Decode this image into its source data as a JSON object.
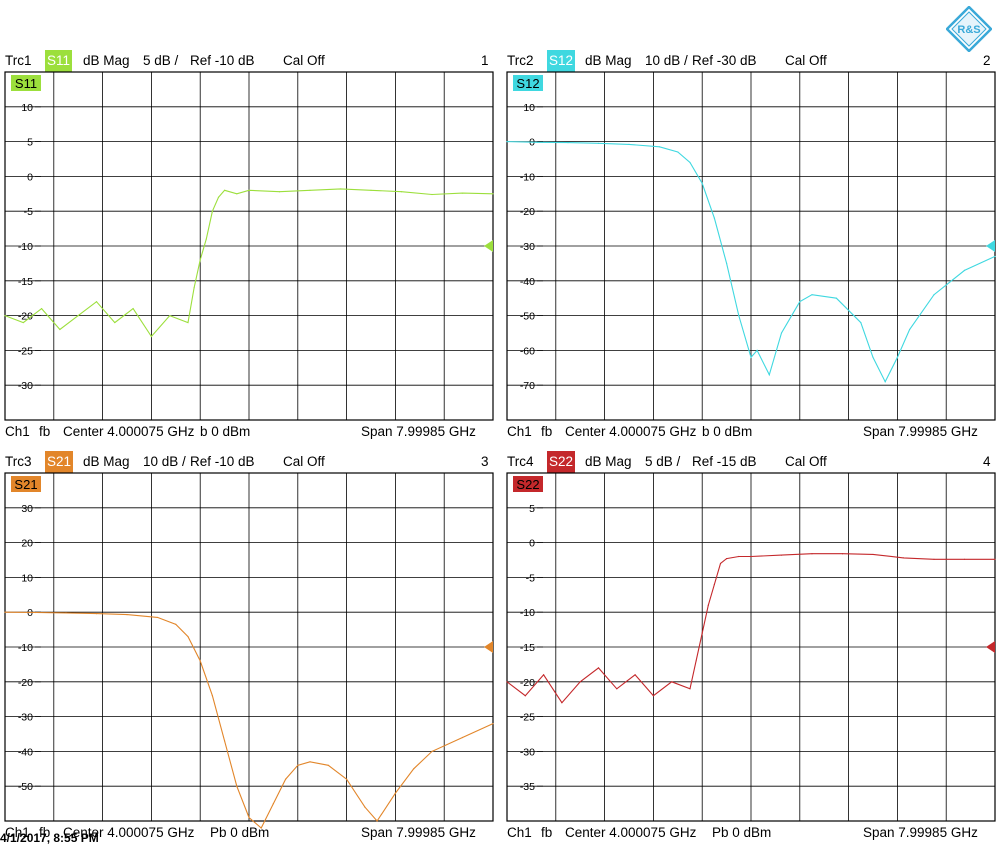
{
  "timestamp": "4/1/2017, 8:55 PM",
  "colors": {
    "s11": "#9cdf3c",
    "s12": "#3fd8e0",
    "s21": "#e2862a",
    "s22": "#c4282b"
  },
  "logo": {
    "text": "R&S",
    "color": "#3aa9d8"
  },
  "chart_data": [
    {
      "type": "line",
      "id": "trc1",
      "header": {
        "trace": "Trc1",
        "param": "S11",
        "format": "dB Mag",
        "scale": "5 dB /",
        "ref": "Ref -10 dB",
        "cal": "Cal Off",
        "number": "1"
      },
      "trace_label": "S11",
      "color": "#9cdf3c",
      "footer": {
        "channel": "Ch1",
        "mode": "fb",
        "center": "Center  4.000075 GHz",
        "power": "b   0 dBm",
        "span": "Span  7.99985 GHz"
      },
      "ylim": [
        -35,
        15
      ],
      "yticks": [
        10,
        5,
        0,
        -5,
        -10,
        -15,
        -20,
        -25,
        -30
      ],
      "ref_value": -10,
      "x": [
        0,
        0.3,
        0.6,
        0.9,
        1.2,
        1.5,
        1.8,
        2.1,
        2.4,
        2.7,
        3.0,
        3.1,
        3.2,
        3.3,
        3.4,
        3.5,
        3.6,
        3.8,
        4.0,
        4.5,
        5.0,
        5.5,
        6.0,
        6.5,
        7.0,
        7.5,
        8.0
      ],
      "y": [
        -20,
        -21,
        -19,
        -22,
        -20,
        -18,
        -21,
        -19,
        -23,
        -20,
        -21,
        -16,
        -12,
        -9,
        -5,
        -3,
        -2,
        -2.5,
        -2,
        -2.2,
        -2,
        -1.8,
        -2,
        -2.2,
        -2.6,
        -2.4,
        -2.5
      ]
    },
    {
      "type": "line",
      "id": "trc2",
      "header": {
        "trace": "Trc2",
        "param": "S12",
        "format": "dB Mag",
        "scale": "10 dB /",
        "ref": "Ref -30 dB",
        "cal": "Cal Off",
        "number": "2"
      },
      "trace_label": "S12",
      "color": "#3fd8e0",
      "footer": {
        "channel": "Ch1",
        "mode": "fb",
        "center": "Center  4.000075 GHz",
        "power": "b   0 dBm",
        "span": "Span  7.99985 GHz"
      },
      "ylim": [
        -80,
        20
      ],
      "yticks": [
        10,
        0,
        -10,
        -20,
        -30,
        -40,
        -50,
        -60,
        -70
      ],
      "ref_value": -30,
      "x": [
        0,
        0.5,
        1.0,
        1.5,
        2.0,
        2.5,
        2.8,
        3.0,
        3.2,
        3.4,
        3.6,
        3.8,
        4.0,
        4.1,
        4.3,
        4.5,
        4.8,
        5.0,
        5.4,
        5.8,
        6.0,
        6.2,
        6.4,
        6.6,
        7.0,
        7.5,
        8.0
      ],
      "y": [
        0,
        -0.2,
        -0.3,
        -0.5,
        -0.8,
        -1.5,
        -3,
        -6,
        -12,
        -22,
        -35,
        -50,
        -62,
        -60,
        -67,
        -55,
        -46,
        -44,
        -45,
        -52,
        -62,
        -69,
        -62,
        -54,
        -44,
        -37,
        -33
      ]
    },
    {
      "type": "line",
      "id": "trc3",
      "header": {
        "trace": "Trc3",
        "param": "S21",
        "format": "dB Mag",
        "scale": "10 dB /",
        "ref": "Ref -10 dB",
        "cal": "Cal Off",
        "number": "3"
      },
      "trace_label": "S21",
      "color": "#e2862a",
      "footer": {
        "channel": "Ch1",
        "mode": "fb",
        "center": "Center  4.000075 GHz",
        "power": "Pb   0 dBm",
        "span": "Span  7.99985 GHz"
      },
      "ylim": [
        -60,
        40
      ],
      "yticks": [
        30,
        20,
        10,
        0,
        -10,
        -20,
        -30,
        -40,
        -50
      ],
      "ref_value": -10,
      "x": [
        0,
        0.5,
        1.0,
        1.5,
        2.0,
        2.5,
        2.8,
        3.0,
        3.2,
        3.4,
        3.6,
        3.8,
        4.0,
        4.2,
        4.4,
        4.6,
        4.8,
        5.0,
        5.3,
        5.6,
        5.9,
        6.1,
        6.4,
        6.7,
        7.0,
        7.5,
        8.0
      ],
      "y": [
        0,
        -0.1,
        -0.2,
        -0.4,
        -0.7,
        -1.5,
        -3.5,
        -7,
        -14,
        -24,
        -37,
        -50,
        -59,
        -62,
        -55,
        -48,
        -44,
        -43,
        -44,
        -48,
        -56,
        -60,
        -52,
        -45,
        -40,
        -36,
        -32
      ]
    },
    {
      "type": "line",
      "id": "trc4",
      "header": {
        "trace": "Trc4",
        "param": "S22",
        "format": "dB Mag",
        "scale": "5 dB /",
        "ref": "Ref -15 dB",
        "cal": "Cal Off",
        "number": "4"
      },
      "trace_label": "S22",
      "color": "#c4282b",
      "footer": {
        "channel": "Ch1",
        "mode": "fb",
        "center": "Center  4.000075 GHz",
        "power": "Pb   0 dBm",
        "span": "Span  7.99985 GHz"
      },
      "ylim": [
        -40,
        10
      ],
      "yticks": [
        5,
        0,
        -5,
        -10,
        -15,
        -20,
        -25,
        -30,
        -35
      ],
      "ref_value": -15,
      "x": [
        0,
        0.3,
        0.6,
        0.9,
        1.2,
        1.5,
        1.8,
        2.1,
        2.4,
        2.7,
        3.0,
        3.1,
        3.2,
        3.3,
        3.4,
        3.5,
        3.6,
        3.8,
        4.0,
        4.5,
        5.0,
        5.5,
        6.0,
        6.5,
        7.0,
        7.5,
        8.0
      ],
      "y": [
        -20,
        -22,
        -19,
        -23,
        -20,
        -18,
        -21,
        -19,
        -22,
        -20,
        -21,
        -17,
        -13,
        -9,
        -6,
        -3,
        -2.3,
        -2,
        -2,
        -1.8,
        -1.6,
        -1.6,
        -1.7,
        -2.2,
        -2.4,
        -2.4,
        -2.4
      ]
    }
  ]
}
